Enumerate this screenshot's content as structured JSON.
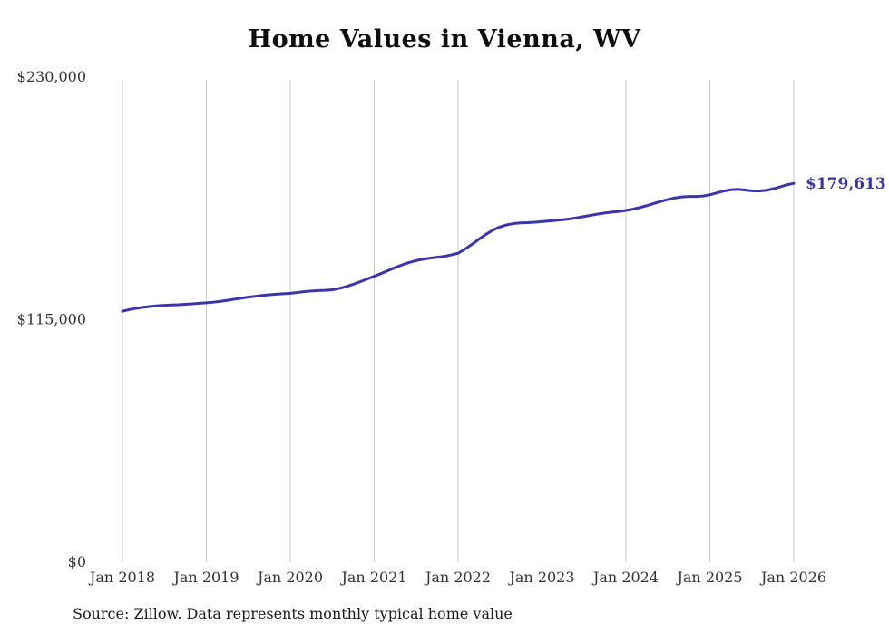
{
  "chart_data": {
    "type": "line",
    "title": "Home Values in Vienna, WV",
    "source_note": "Source: Zillow. Data represents monthly typical home value",
    "end_label": "$179,613",
    "final_value": 179613,
    "line_color": "#3a35ab",
    "grid_color": "#c9c9c9",
    "axis_label_color": "#333333",
    "grid": "vertical-only",
    "legend_position": "none",
    "ylim": [
      0,
      230000
    ],
    "y_ticks": [
      {
        "value": 0,
        "label": "$0"
      },
      {
        "value": 115000,
        "label": "$115,000"
      },
      {
        "value": 230000,
        "label": "$230,000"
      }
    ],
    "x_tick_labels": [
      "Jan 2018",
      "Jan 2019",
      "Jan 2020",
      "Jan 2021",
      "Jan 2022",
      "Jan 2023",
      "Jan 2024",
      "Jan 2025",
      "Jan 2026"
    ],
    "x_unit": "month",
    "x_start": "2018-01",
    "x_end": "2026-01",
    "series": [
      {
        "name": "Typical home value",
        "values": [
          119000,
          119800,
          120400,
          120900,
          121300,
          121600,
          121800,
          122000,
          122100,
          122300,
          122500,
          122800,
          123000,
          123300,
          123700,
          124200,
          124700,
          125200,
          125700,
          126100,
          126500,
          126800,
          127100,
          127300,
          127500,
          127900,
          128300,
          128600,
          128800,
          128900,
          129200,
          129800,
          130700,
          131800,
          133000,
          134300,
          135600,
          136900,
          138300,
          139700,
          141000,
          142100,
          143000,
          143700,
          144200,
          144600,
          145000,
          145700,
          146500,
          148500,
          150800,
          153200,
          155500,
          157500,
          159000,
          160000,
          160600,
          160900,
          161000,
          161200,
          161500,
          161800,
          162100,
          162400,
          162800,
          163300,
          163900,
          164500,
          165100,
          165600,
          166000,
          166300,
          166800,
          167400,
          168200,
          169100,
          170100,
          171100,
          172000,
          172700,
          173200,
          173400,
          173400,
          173600,
          174200,
          175100,
          176000,
          176600,
          176800,
          176500,
          176100,
          176000,
          176300,
          177000,
          177900,
          178900,
          179613
        ]
      }
    ]
  }
}
